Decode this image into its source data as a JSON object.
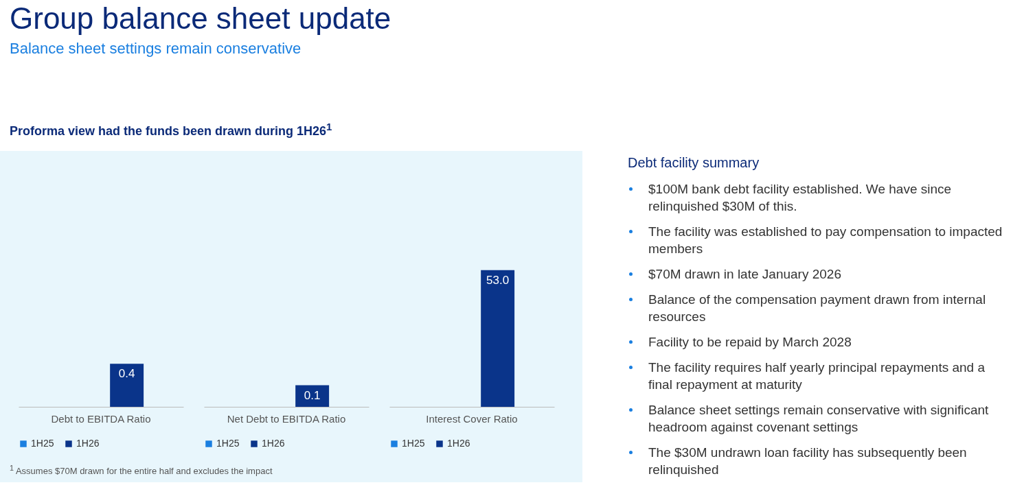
{
  "chart_data": [
    {
      "type": "other",
      "title": "Group balance sheet update",
      "subtitle": "Balance sheet settings remain conservative",
      "annotations": [
        "Proforma view had the funds been drawn during 1H26$^{1}$",
        "$^{1}$ Assumes $70M drawn for the entire half and excludes the impact"
      ]
    },
    {
      "type": "bar",
      "categories": [
        "Debt to EBITDA Ratio"
      ],
      "legend": "bottom",
      "series": [
        {
          "name": "1H25",
          "color": "#1a7fe0",
          "values": [
            null
          ]
        },
        {
          "name": "1H26",
          "color": "#0a348a",
          "values": [
            0.4
          ],
          "value_labels": [
            "0.4"
          ]
        }
      ]
    },
    {
      "type": "bar",
      "categories": [
        "Net Debt to EBITDA Ratio"
      ],
      "legend": "bottom",
      "series": [
        {
          "name": "1H25",
          "color": "#1a7fe0",
          "values": [
            null
          ]
        },
        {
          "name": "1H26",
          "color": "#0a348a",
          "values": [
            0.1
          ],
          "value_labels": [
            "0.1"
          ]
        }
      ]
    },
    {
      "type": "bar",
      "categories": [
        "Interest Cover Ratio"
      ],
      "legend": "bottom",
      "series": [
        {
          "name": "1H25",
          "color": "#1a7fe0",
          "values": [
            null
          ]
        },
        {
          "name": "1H26",
          "color": "#0a348a",
          "values": [
            53.0
          ],
          "value_labels": [
            "53.0"
          ]
        }
      ]
    },
    {
      "type": "other",
      "title": "Debt facility summary",
      "annotations": [
        "$100M bank debt facility established. We have since relinquished $30M of this.",
        "The facility was established to pay compensation to impacted members",
        "$70M drawn in late January 2026",
        "Balance of the compensation payment drawn from internal resources",
        "Facility to be repaid by March 2028",
        "The facility requires half yearly principal repayments and a final repayment at maturity",
        "Balance sheet settings remain conservative with significant headroom against covenant settings",
        "The $30M undrawn loan facility has subsequently been relinquished"
      ]
    }
  ]
}
